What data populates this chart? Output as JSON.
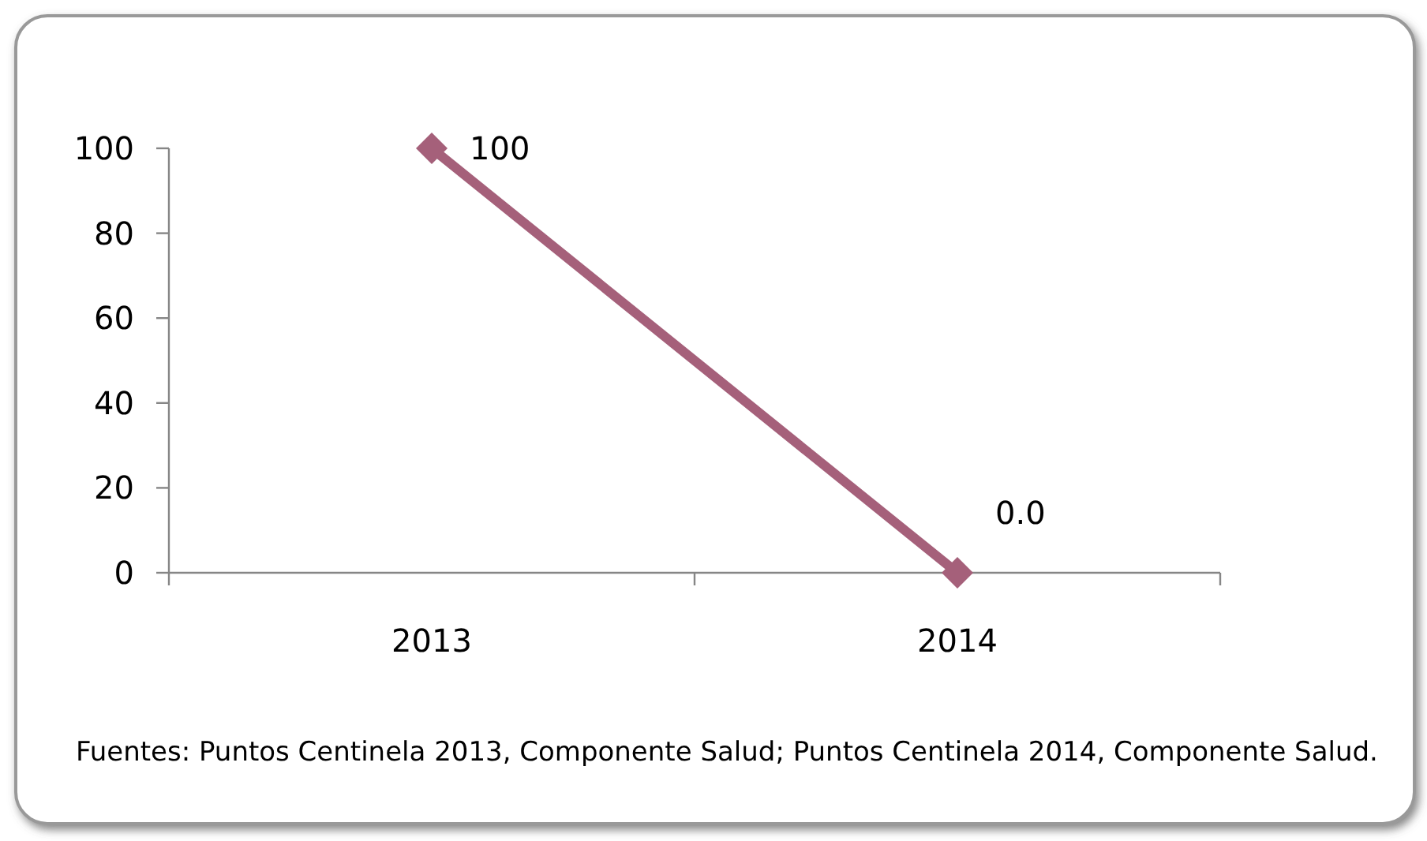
{
  "chart_data": {
    "type": "line",
    "categories": [
      "2013",
      "2014"
    ],
    "values": [
      100,
      0
    ],
    "value_labels": [
      "100",
      "0.0"
    ],
    "color": "#a5607a",
    "marker": "diamond",
    "line_style": "solid",
    "ylim": [
      0,
      100
    ],
    "yticks": [
      0,
      20,
      40,
      60,
      80,
      100
    ],
    "annotations": [
      "Fuentes: Puntos Centinela 2013, Componente Salud; Puntos Centinela 2014, Componente Salud."
    ]
  }
}
